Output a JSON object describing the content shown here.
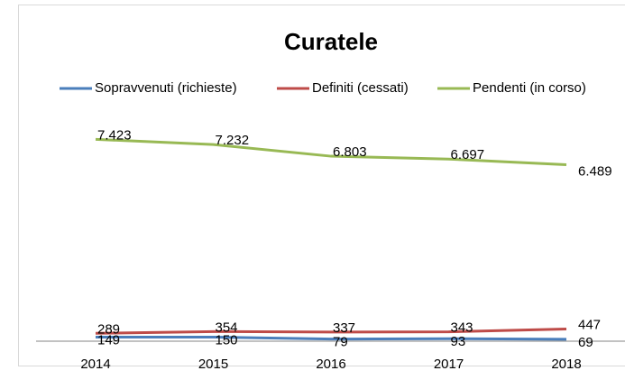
{
  "chart_data": {
    "type": "line",
    "title": "Curatele",
    "categories": [
      "2014",
      "2015",
      "2016",
      "2017",
      "2018"
    ],
    "series": [
      {
        "name": "Sopravvenuti (richieste)",
        "color": "#4a7ebb",
        "values": [
          149,
          150,
          79,
          93,
          69
        ]
      },
      {
        "name": "Definiti (cessati)",
        "color": "#be4b48",
        "values": [
          289,
          354,
          337,
          343,
          447
        ]
      },
      {
        "name": "Pendenti (in corso)",
        "color": "#98b954",
        "values": [
          7423,
          7232,
          6803,
          6697,
          6489
        ],
        "value_labels": [
          "7.423",
          "7.232",
          "6.803",
          "6.697",
          "6.489"
        ]
      }
    ],
    "ylim": [
      0,
      8000
    ],
    "legend": "top"
  }
}
